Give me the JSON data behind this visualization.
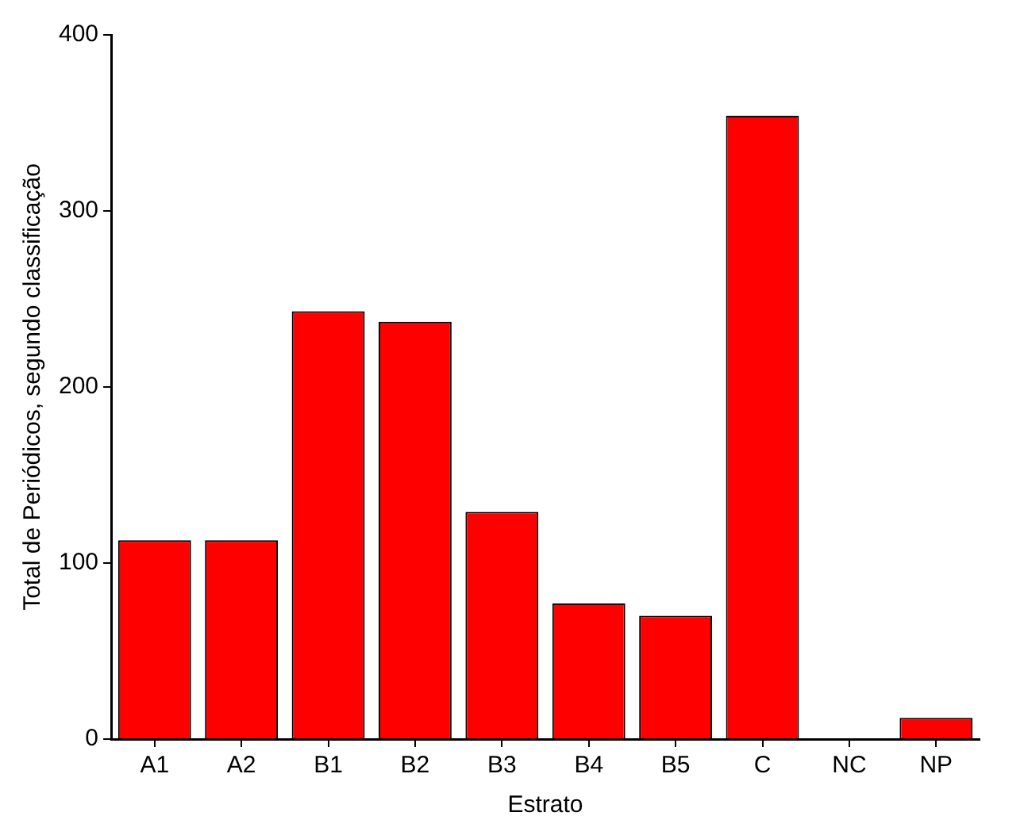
{
  "chart_data": {
    "type": "bar",
    "xlabel": "Estrato",
    "ylabel": "Total de Periódicos, segundo classificação",
    "categories": [
      "A1",
      "A2",
      "B1",
      "B2",
      "B3",
      "B4",
      "B5",
      "C",
      "NC",
      "NP"
    ],
    "values": [
      113,
      113,
      243,
      237,
      129,
      77,
      70,
      354,
      0,
      12
    ],
    "color": "#ff0000",
    "ylim": [
      0,
      400
    ],
    "yticks": [
      0,
      100,
      200,
      300,
      400
    ],
    "grid": false,
    "legend": false
  }
}
